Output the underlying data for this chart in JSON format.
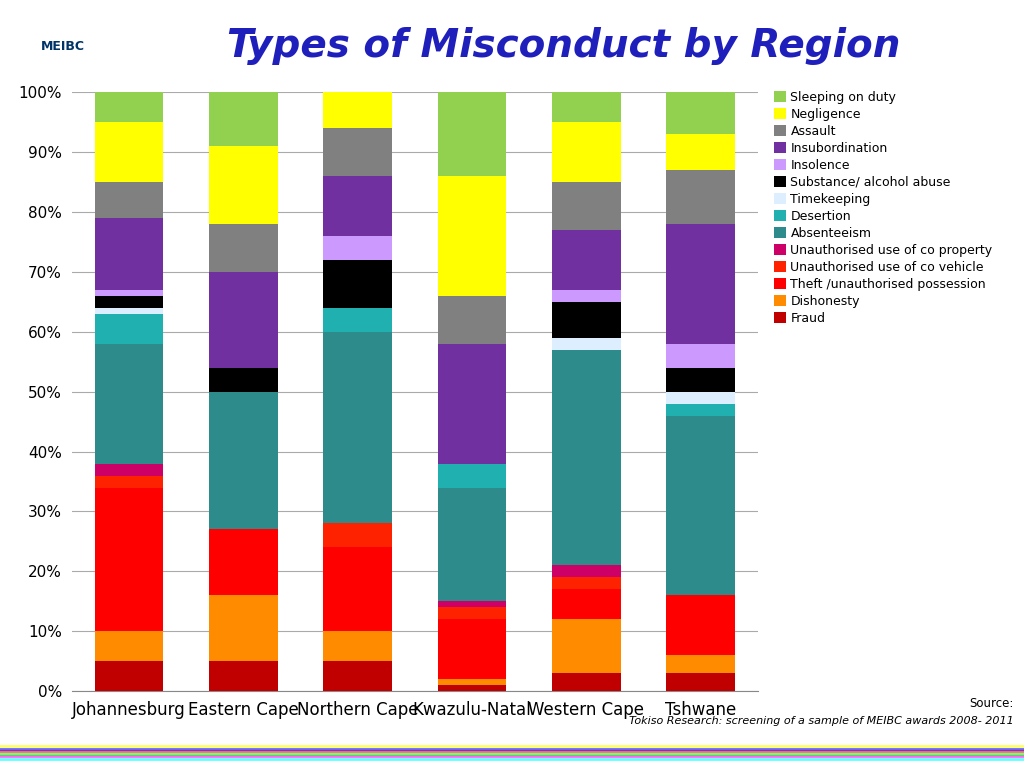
{
  "title": "Types of Misconduct by Region",
  "regions": [
    "Johannesburg",
    "Eastern Cape",
    "Northern Cape",
    "Kwazulu-Natal",
    "Western Cape",
    "Tshwane"
  ],
  "categories": [
    "Fraud",
    "Dishonesty",
    "Theft /unauthorised possession",
    "Unauthorised use of co vehicle",
    "Unauthorised use of co property",
    "Absenteeism",
    "Desertion",
    "Timekeeping",
    "Substance/ alcohol abuse",
    "Insolence",
    "Insubordination",
    "Assault",
    "Negligence",
    "Sleeping on duty"
  ],
  "colors": [
    "#C00000",
    "#FF8C00",
    "#FF0000",
    "#FF2200",
    "#CC0066",
    "#2E8B8B",
    "#20B0B0",
    "#DDEEFF",
    "#000000",
    "#CC99FF",
    "#7030A0",
    "#808080",
    "#FFFF00",
    "#92D050"
  ],
  "raw_data": {
    "Johannesburg": [
      5,
      5,
      24,
      2,
      2,
      20,
      5,
      1,
      2,
      1,
      12,
      6,
      10,
      5
    ],
    "Eastern Cape": [
      5,
      11,
      11,
      0,
      0,
      23,
      0,
      0,
      4,
      0,
      16,
      8,
      13,
      9
    ],
    "Northern Cape": [
      5,
      5,
      14,
      4,
      0,
      32,
      4,
      0,
      8,
      4,
      10,
      8,
      6,
      0
    ],
    "Kwazulu-Natal": [
      1,
      1,
      10,
      2,
      1,
      19,
      4,
      0,
      0,
      0,
      20,
      8,
      20,
      14
    ],
    "Western Cape": [
      3,
      9,
      5,
      2,
      2,
      36,
      0,
      2,
      6,
      2,
      10,
      8,
      10,
      5
    ],
    "Tshwane": [
      3,
      3,
      10,
      0,
      0,
      30,
      2,
      2,
      4,
      4,
      20,
      9,
      6,
      7
    ]
  },
  "source_line1": "Source:",
  "source_line2": "Tokiso Research: screening of a sample of MEIBC awards 2008- 2011",
  "background_color": "#FFFFFF",
  "title_color": "#1F1FBB",
  "title_fontsize": 28,
  "bar_width": 0.6,
  "ylim": [
    0,
    100
  ],
  "ytick_values": [
    0,
    10,
    20,
    30,
    40,
    50,
    60,
    70,
    80,
    90,
    100
  ],
  "ytick_labels": [
    "0%",
    "10%",
    "20%",
    "30%",
    "40%",
    "50%",
    "60%",
    "70%",
    "80%",
    "90%",
    "100%"
  ]
}
